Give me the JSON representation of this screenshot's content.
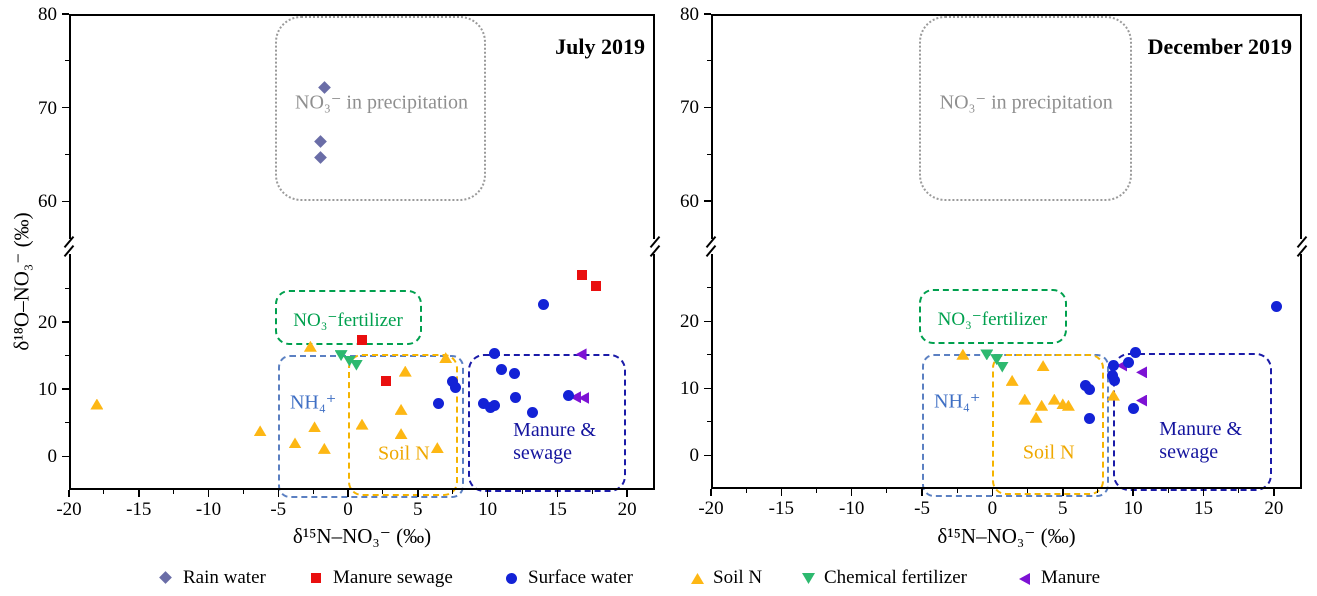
{
  "figure": {
    "type_note": "Dual-isotope nitrate source biplot, two panels with broken y-axis"
  },
  "legend": {
    "items": [
      {
        "key": "rain_water",
        "label": "Rain water",
        "shape": "diamond",
        "color": "#6a6da7"
      },
      {
        "key": "manure_sewage",
        "label": "Manure sewage",
        "shape": "square",
        "color": "#e90f0f"
      },
      {
        "key": "surface_water",
        "label": "Surface water",
        "shape": "circle",
        "color": "#1322d6"
      },
      {
        "key": "soil_n",
        "label": "Soil N",
        "shape": "triangle-up",
        "color": "#fdb714"
      },
      {
        "key": "chemical_fertilizer",
        "label": "Chemical fertilizer",
        "shape": "triangle-down",
        "color": "#2db96f"
      },
      {
        "key": "manure",
        "label": "Manure",
        "shape": "triangle-left",
        "color": "#7d12d4"
      }
    ]
  },
  "chart_data": {
    "type": "scatter",
    "xlabel": "δ¹⁵N–NO₃⁻ (‰)",
    "ylabel": "δ¹⁸O–NO₃⁻ (‰)",
    "x_axis": {
      "min": -20,
      "max": 22,
      "major_ticks": [
        -20,
        -15,
        -10,
        -5,
        0,
        5,
        10,
        15,
        20
      ],
      "minor_offset": 2.5
    },
    "y_axis": {
      "broken": true,
      "lower_range": [
        -5,
        31
      ],
      "upper_range": [
        55,
        80
      ],
      "break_fraction": 0.492,
      "major_lower": [
        0,
        10,
        20
      ],
      "major_upper": [
        60,
        70,
        80
      ],
      "minor_lower": [
        5,
        15,
        25
      ],
      "minor_upper": [
        65,
        75
      ]
    },
    "regions": [
      {
        "id": "precipitation",
        "label": "NO₃⁻ in precipitation",
        "x": [
          -5.2,
          9.9
        ],
        "y": [
          60,
          79.8
        ],
        "color": "#9a9a9a",
        "border": "dotted",
        "radius": 26,
        "label_pos": [
          2.4,
          70.5
        ],
        "label_color": "#8f8f8f",
        "font": 20
      },
      {
        "id": "no3-fertilizer",
        "label": "NO₃⁻fertilizer",
        "x": [
          -5.2,
          5.3
        ],
        "y": [
          16.6,
          24.8
        ],
        "color": "#00a04e",
        "border": "dashed",
        "radius": 14,
        "label_pos": [
          0,
          20.2
        ],
        "label_color": "#00a04e",
        "font": 19
      },
      {
        "id": "nh4",
        "label": "NH₄⁺",
        "x": [
          -5,
          8.3
        ],
        "y": [
          -6.2,
          15.1
        ],
        "color": "#5b80c2",
        "border": "dashed",
        "radius": 12,
        "label_pos": [
          -2.5,
          8
        ],
        "label_color": "#3f6fc4",
        "font": 20
      },
      {
        "id": "soil-n",
        "label": "Soil N",
        "x": [
          0,
          7.9
        ],
        "y": [
          -5.9,
          15.2
        ],
        "color": "#f5b400",
        "border": "dashed",
        "radius": 14,
        "label_pos": [
          4,
          0.4
        ],
        "label_color": "#efa800",
        "font": 20
      },
      {
        "id": "manure-sewage",
        "label": "Manure &\nsewage",
        "x": [
          8.6,
          19.9
        ],
        "y": [
          -5.3,
          15.3
        ],
        "color": "#1b1ba8",
        "border": "dashed",
        "radius": 16,
        "label_pos": [
          14.8,
          2.1
        ],
        "label_color": "#14149e",
        "font": 20
      }
    ],
    "plots": [
      {
        "title": "July 2019",
        "series": {
          "rain_water": [
            [
              -1.7,
              72.2
            ],
            [
              -2.0,
              66.4
            ],
            [
              -2.0,
              64.7
            ]
          ],
          "manure_sewage": [
            [
              16.8,
              27.0
            ],
            [
              17.8,
              25.3
            ],
            [
              1.0,
              17.3
            ],
            [
              2.7,
              11.3
            ]
          ],
          "surface_water": [
            [
              14.0,
              22.6
            ],
            [
              10.5,
              15.3
            ],
            [
              11.0,
              13.0
            ],
            [
              11.9,
              12.3
            ],
            [
              7.5,
              11.1
            ],
            [
              7.7,
              10.2
            ],
            [
              6.5,
              7.9
            ],
            [
              9.7,
              7.9
            ],
            [
              10.2,
              7.3
            ],
            [
              10.5,
              7.6
            ],
            [
              12.0,
              8.8
            ],
            [
              13.2,
              6.6
            ],
            [
              15.8,
              9.1
            ]
          ],
          "soil_n": [
            [
              -18.0,
              7.8
            ],
            [
              -6.3,
              3.8
            ],
            [
              -3.8,
              2.0
            ],
            [
              -2.4,
              4.4
            ],
            [
              -1.7,
              1.2
            ],
            [
              -2.7,
              16.4
            ],
            [
              1.0,
              4.8
            ],
            [
              3.8,
              7.0
            ],
            [
              3.8,
              3.4
            ],
            [
              4.1,
              12.7
            ],
            [
              6.4,
              1.3
            ],
            [
              7.0,
              14.7
            ]
          ],
          "chemical_fertilizer": [
            [
              -0.5,
              15.0
            ],
            [
              0.1,
              14.2
            ],
            [
              0.6,
              13.6
            ]
          ],
          "manure": [
            [
              16.7,
              15.2
            ],
            [
              16.3,
              8.8
            ],
            [
              16.9,
              8.7
            ]
          ]
        }
      },
      {
        "title": "December 2019",
        "series": {
          "rain_water": [],
          "manure_sewage": [],
          "surface_water": [
            [
              20.2,
              22.2
            ],
            [
              10.2,
              15.3
            ],
            [
              9.7,
              13.9
            ],
            [
              8.6,
              13.4
            ],
            [
              8.5,
              12.0
            ],
            [
              8.7,
              11.2
            ],
            [
              6.6,
              10.4
            ],
            [
              6.9,
              9.9
            ],
            [
              10.0,
              7.0
            ],
            [
              6.9,
              5.5
            ]
          ],
          "soil_n": [
            [
              -2.1,
              15.1
            ],
            [
              3.6,
              13.4
            ],
            [
              1.4,
              11.2
            ],
            [
              2.3,
              8.4
            ],
            [
              3.5,
              7.5
            ],
            [
              4.4,
              8.4
            ],
            [
              5.0,
              7.7
            ],
            [
              5.4,
              7.5
            ],
            [
              3.1,
              5.7
            ],
            [
              8.6,
              9.0
            ]
          ],
          "chemical_fertilizer": [
            [
              -0.4,
              15.0
            ],
            [
              0.3,
              14.3
            ],
            [
              0.7,
              13.2
            ]
          ],
          "manure": [
            [
              9.2,
              13.4
            ],
            [
              10.6,
              12.4
            ],
            [
              10.6,
              8.2
            ]
          ]
        }
      }
    ],
    "legend_position": "bottom"
  }
}
